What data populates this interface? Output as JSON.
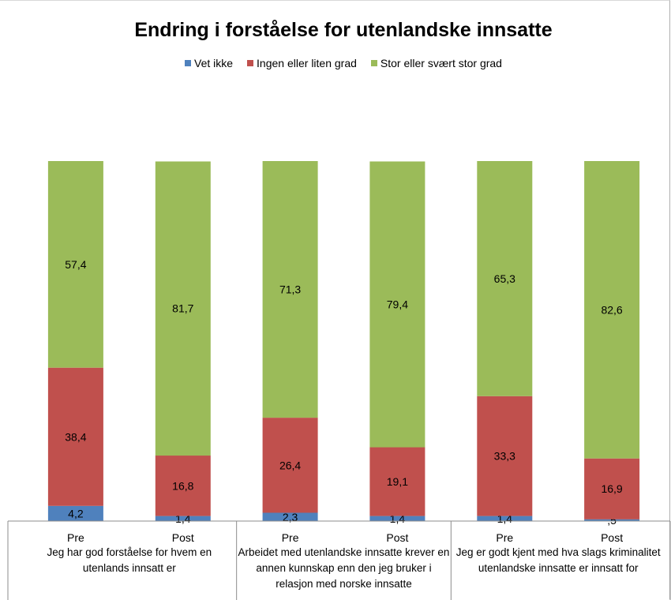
{
  "chart_data": {
    "type": "bar",
    "stacked": true,
    "title": "Endring i forståelse for utenlandske innsatte",
    "legend_position": "top",
    "series": [
      {
        "name": "Vet ikke",
        "color": "#4f81bd",
        "values": [
          4.2,
          1.4,
          2.3,
          1.4,
          1.4,
          0.5
        ],
        "labels": [
          "4,2",
          "1,4",
          "2,3",
          "1,4",
          "1,4",
          ",5"
        ]
      },
      {
        "name": "Ingen eller liten grad",
        "color": "#c0504d",
        "values": [
          38.4,
          16.8,
          26.4,
          19.1,
          33.3,
          16.9
        ],
        "labels": [
          "38,4",
          "16,8",
          "26,4",
          "19,1",
          "33,3",
          "16,9"
        ]
      },
      {
        "name": "Stor eller svært stor grad",
        "color": "#9bbb59",
        "values": [
          57.4,
          81.7,
          71.3,
          79.4,
          65.3,
          82.6
        ],
        "labels": [
          "57,4",
          "81,7",
          "71,3",
          "79,4",
          "65,3",
          "82,6"
        ]
      }
    ],
    "categories": [
      "Pre",
      "Post",
      "Pre",
      "Post",
      "Pre",
      "Post"
    ],
    "groups": [
      "Jeg har god forståelse for hvem en utenlands innsatt er",
      "Arbeidet med  utenlandske innsatte krever en annen kunnskap enn den jeg bruker i relasjon med norske innsatte",
      "Jeg er godt kjent med hva slags kriminalitet utenlandske  innsatte er innsatt for"
    ],
    "ylim": [
      0,
      100
    ],
    "grid": false
  }
}
